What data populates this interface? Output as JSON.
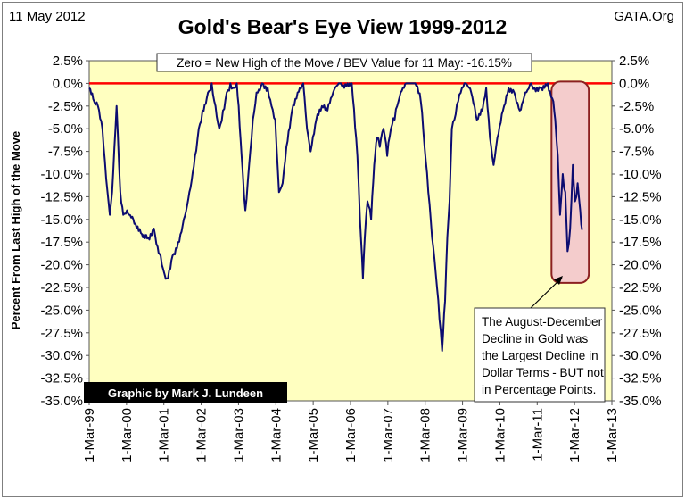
{
  "header": {
    "date": "11 May 2012",
    "source": "GATA.Org"
  },
  "chart_data": {
    "type": "line",
    "title": "Gold's Bear's Eye View 1999-2012",
    "ylabel": "Percent From Last High of the Move",
    "xlabel": "",
    "ylim": [
      -35,
      2.5
    ],
    "y_ticks": [
      2.5,
      0,
      -2.5,
      -5,
      -7.5,
      -10,
      -12.5,
      -15,
      -17.5,
      -20,
      -22.5,
      -25,
      -27.5,
      -30,
      -32.5,
      -35
    ],
    "y_tick_labels": [
      "2.5%",
      "0.0%",
      "-2.5%",
      "-5.0%",
      "-7.5%",
      "-10.0%",
      "-12.5%",
      "-15.0%",
      "-17.5%",
      "-20.0%",
      "-22.5%",
      "-25.0%",
      "-27.5%",
      "-30.0%",
      "-32.5%",
      "-35.0%"
    ],
    "x_ticks": [
      "1-Mar-99",
      "1-Mar-00",
      "1-Mar-01",
      "1-Mar-02",
      "1-Mar-03",
      "1-Mar-04",
      "1-Mar-05",
      "1-Mar-06",
      "1-Mar-07",
      "1-Mar-08",
      "1-Mar-09",
      "1-Mar-10",
      "1-Mar-11",
      "1-Mar-12",
      "1-Mar-13"
    ],
    "grid": false,
    "plot_background": "#ffffc0",
    "zero_line_color": "#ff0000",
    "series": [
      {
        "color": "#0c0c70",
        "x": [
          1999.17,
          1999.3,
          1999.4,
          1999.52,
          1999.62,
          1999.72,
          1999.78,
          1999.9,
          2000.0,
          2000.08,
          2000.18,
          2000.35,
          2000.55,
          2000.75,
          2000.9,
          2001.0,
          2001.08,
          2001.15,
          2001.25,
          2001.4,
          2001.55,
          2001.7,
          2001.85,
          2002.0,
          2002.1,
          2002.2,
          2002.35,
          2002.45,
          2002.55,
          2002.65,
          2002.75,
          2002.85,
          2002.95,
          2003.05,
          2003.12,
          2003.17,
          2003.25,
          2003.35,
          2003.45,
          2003.55,
          2003.65,
          2003.8,
          2003.95,
          2004.05,
          2004.15,
          2004.25,
          2004.35,
          2004.45,
          2004.6,
          2004.75,
          2004.9,
          2005.0,
          2005.1,
          2005.25,
          2005.4,
          2005.55,
          2005.7,
          2005.85,
          2006.0,
          2006.2,
          2006.35,
          2006.42,
          2006.5,
          2006.55,
          2006.62,
          2006.72,
          2006.8,
          2006.88,
          2006.95,
          2007.05,
          2007.15,
          2007.25,
          2007.35,
          2007.45,
          2007.6,
          2007.75,
          2007.9,
          2008.05,
          2008.15,
          2008.25,
          2008.35,
          2008.45,
          2008.55,
          2008.62,
          2008.7,
          2008.76,
          2008.82,
          2008.88,
          2008.95,
          2009.05,
          2009.15,
          2009.25,
          2009.4,
          2009.55,
          2009.7,
          2009.8,
          2009.9,
          2010.0,
          2010.1,
          2010.25,
          2010.4,
          2010.55,
          2010.7,
          2010.85,
          2011.0,
          2011.1,
          2011.25,
          2011.45,
          2011.6,
          2011.65,
          2011.72,
          2011.78,
          2011.85,
          2011.92,
          2011.98,
          2012.05,
          2012.12,
          2012.18,
          2012.25,
          2012.32,
          2012.37
        ],
        "y": [
          -0.5,
          -2.0,
          -2.5,
          -5.0,
          -10.5,
          -14.5,
          -12.0,
          -2.5,
          -12.0,
          -14.5,
          -14.0,
          -15.0,
          -16.5,
          -17.0,
          -16.0,
          -18.0,
          -19.0,
          -20.5,
          -21.5,
          -19.0,
          -17.5,
          -15.0,
          -12.0,
          -8.0,
          -5.0,
          -3.0,
          -1.0,
          0.0,
          -2.5,
          -5.0,
          -3.0,
          -1.0,
          0.0,
          -0.5,
          0.0,
          -2.5,
          -8.0,
          -14.0,
          -9.0,
          -4.0,
          -1.0,
          0.0,
          -0.5,
          -2.5,
          -4.0,
          -12.0,
          -11.0,
          -7.0,
          -3.0,
          -1.0,
          0.0,
          -5.0,
          -7.5,
          -4.0,
          -2.5,
          -3.0,
          -1.0,
          0.0,
          -0.5,
          0.0,
          -8.0,
          -15.0,
          -21.5,
          -17.0,
          -13.0,
          -15.0,
          -9.0,
          -6.0,
          -7.0,
          -5.0,
          -8.0,
          -5.0,
          -4.0,
          -2.0,
          -0.5,
          0.0,
          0.0,
          -2.0,
          -7.0,
          -12.0,
          -17.0,
          -21.0,
          -26.0,
          -29.5,
          -24.0,
          -17.0,
          -13.0,
          -5.0,
          -4.0,
          -2.0,
          -0.5,
          0.0,
          -1.0,
          -4.0,
          -3.0,
          -0.5,
          -6.0,
          -9.0,
          -6.0,
          -3.0,
          -0.5,
          -1.0,
          -3.0,
          -1.0,
          0.0,
          -0.5,
          -0.5,
          0.0,
          -2.0,
          -4.0,
          -8.0,
          -14.5,
          -10.0,
          -12.0,
          -18.5,
          -16.0,
          -9.0,
          -13.0,
          -11.0,
          -14.0,
          -16.15
        ]
      }
    ],
    "annotations": {
      "top_box": "Zero = New High of the Move / BEV Value for 11 May: -16.15%",
      "credit": "Graphic by Mark J. Lundeen",
      "callout_lines": [
        "The August-December",
        "Decline in Gold was",
        "the Largest Decline in",
        "Dollar Terms - BUT not",
        "in Percentage Points."
      ],
      "highlight_fill": "#f4cccc",
      "highlight_stroke": "#8b2020"
    }
  }
}
